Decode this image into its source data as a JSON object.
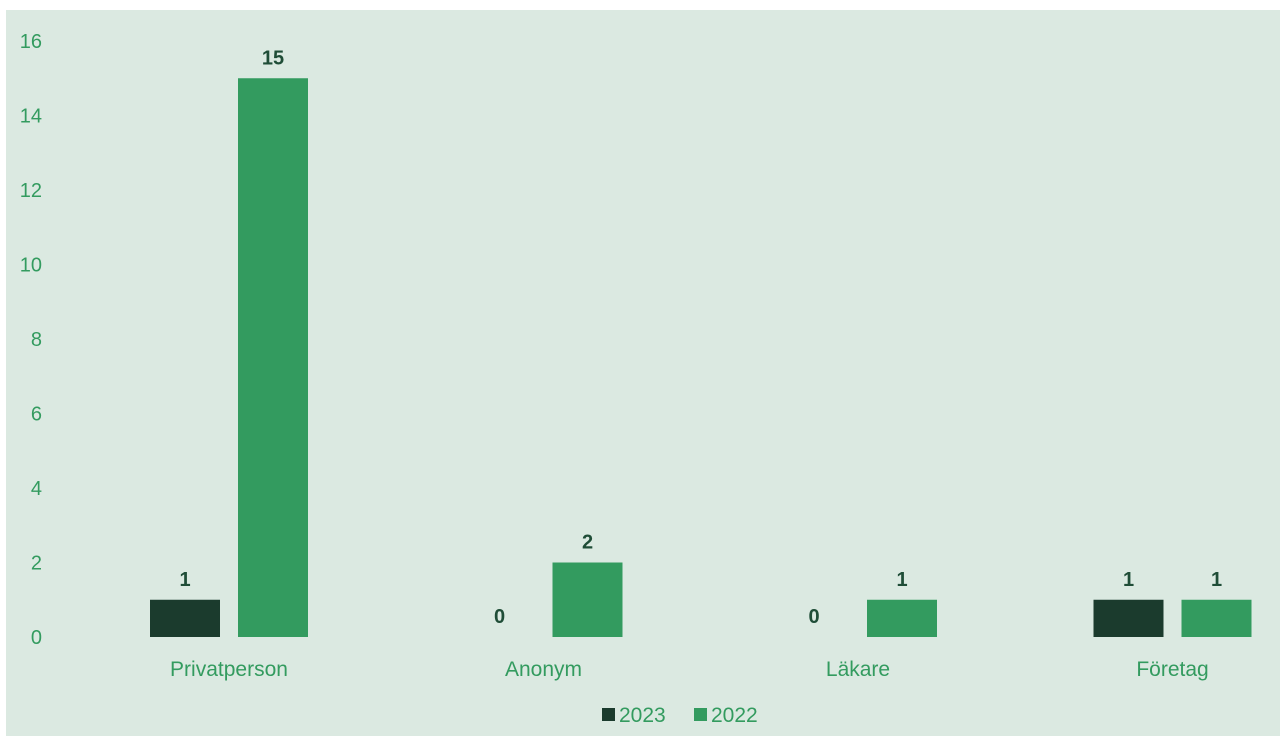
{
  "colors": {
    "page_background": "#ffffff",
    "plot_background": "#dbe9e1",
    "series_2023": "#1b3b2d",
    "series_2022": "#339b5f",
    "axis_text": "#339b5f",
    "data_label_text": "#1f4d37",
    "legend_text": "#339b5f"
  },
  "chart_data": {
    "type": "bar",
    "title": "",
    "xlabel": "",
    "ylabel": "",
    "categories": [
      "Privatperson",
      "Anonym",
      "Läkare",
      "Företag"
    ],
    "series": [
      {
        "name": "2023",
        "values": [
          1,
          0,
          0,
          1
        ]
      },
      {
        "name": "2022",
        "values": [
          15,
          2,
          1,
          1
        ]
      }
    ],
    "ylim": [
      0,
      16
    ],
    "yticks": [
      0,
      2,
      4,
      6,
      8,
      10,
      12,
      14,
      16
    ],
    "grid": false,
    "data_labels": true,
    "legend_position": "bottom-center"
  }
}
